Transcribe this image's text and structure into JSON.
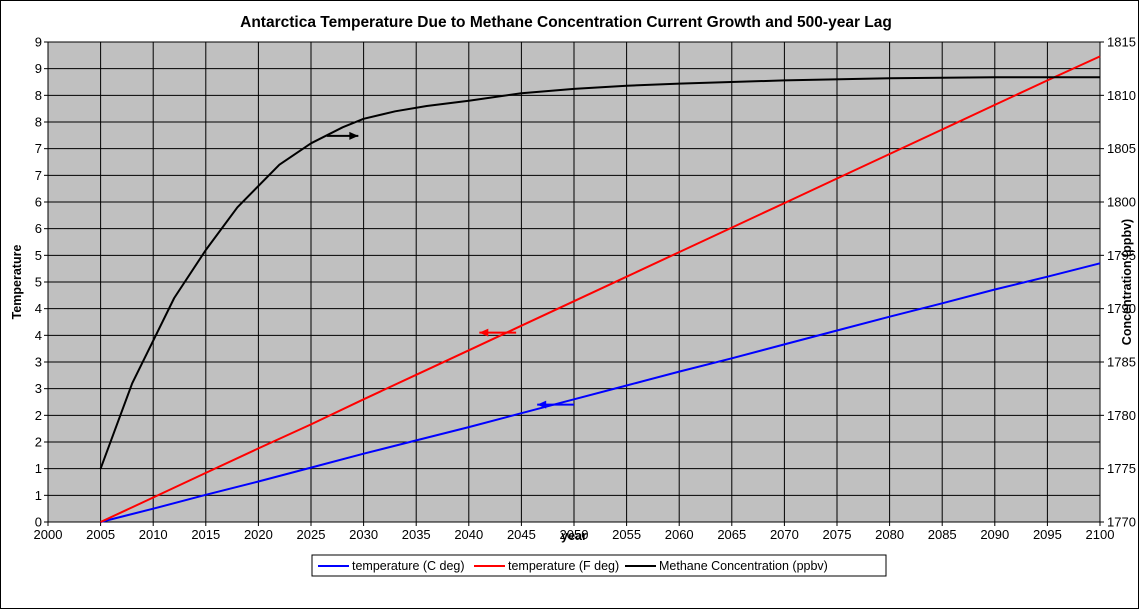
{
  "chart_data": {
    "type": "line",
    "title": "Antarctica Temperature Due to Methane Concentration Current  Growth and 500-year Lag",
    "xlabel": "year",
    "ylabel": "Temperature",
    "y2label": "Concentration (ppbv)",
    "xlim": [
      2000,
      2100
    ],
    "ylim": [
      0,
      9
    ],
    "y2lim": [
      1770,
      1815
    ],
    "x_ticks": [
      2000,
      2005,
      2010,
      2015,
      2020,
      2025,
      2030,
      2035,
      2040,
      2045,
      2050,
      2055,
      2060,
      2065,
      2070,
      2075,
      2080,
      2085,
      2090,
      2095,
      2100
    ],
    "y_tick_labels": [
      "0",
      "1",
      "1",
      "2",
      "2",
      "3",
      "3",
      "4",
      "4",
      "5",
      "5",
      "6",
      "6",
      "7",
      "7",
      "8",
      "8",
      "9",
      "9"
    ],
    "y2_ticks": [
      1770,
      1775,
      1780,
      1785,
      1790,
      1795,
      1800,
      1805,
      1810,
      1815
    ],
    "grid": true,
    "legend_position": "bottom",
    "plot_background": "#c0c0c0",
    "series": [
      {
        "name": "temperature (C deg)",
        "color": "#0000ff",
        "axis": "left",
        "x": [
          2005,
          2010,
          2015,
          2020,
          2025,
          2030,
          2035,
          2040,
          2045,
          2050,
          2055,
          2060,
          2065,
          2070,
          2075,
          2080,
          2085,
          2090,
          2095,
          2100
        ],
        "values": [
          0,
          0.25,
          0.51,
          0.76,
          1.02,
          1.28,
          1.53,
          1.78,
          2.04,
          2.3,
          2.56,
          2.82,
          3.07,
          3.33,
          3.59,
          3.85,
          4.1,
          4.36,
          4.6,
          4.85
        ]
      },
      {
        "name": "temperature (F deg)",
        "color": "#ff0000",
        "axis": "left",
        "x": [
          2005,
          2010,
          2015,
          2020,
          2025,
          2030,
          2035,
          2040,
          2045,
          2050,
          2055,
          2060,
          2065,
          2070,
          2075,
          2080,
          2085,
          2090,
          2095,
          2100
        ],
        "values": [
          0,
          0.46,
          0.92,
          1.38,
          1.83,
          2.3,
          2.76,
          3.22,
          3.68,
          4.14,
          4.6,
          5.06,
          5.52,
          5.98,
          6.44,
          6.9,
          7.36,
          7.82,
          8.28,
          8.73
        ]
      },
      {
        "name": "Methane Concentration (ppbv)",
        "color": "#000000",
        "axis": "right",
        "x": [
          2005,
          2008,
          2010,
          2012,
          2015,
          2018,
          2022,
          2025,
          2028,
          2030,
          2033,
          2036,
          2040,
          2045,
          2050,
          2055,
          2060,
          2070,
          2080,
          2090,
          2100
        ],
        "values": [
          1775,
          1783,
          1787,
          1791,
          1795.5,
          1799.5,
          1803.5,
          1805.5,
          1807,
          1807.8,
          1808.5,
          1809,
          1809.5,
          1810.2,
          1810.6,
          1810.9,
          1811.1,
          1811.4,
          1811.6,
          1811.7,
          1811.7
        ]
      }
    ],
    "annotations": [
      {
        "type": "arrow",
        "direction": "right",
        "color": "#000000",
        "x": [
          2026.5,
          2029.5
        ],
        "y2": 1806.2
      },
      {
        "type": "arrow",
        "direction": "left",
        "color": "#ff0000",
        "x": [
          2044.5,
          2041
        ],
        "y": 3.55
      },
      {
        "type": "arrow",
        "direction": "left",
        "color": "#0000ff",
        "x": [
          2050,
          2046.5
        ],
        "y": 2.2
      }
    ]
  }
}
